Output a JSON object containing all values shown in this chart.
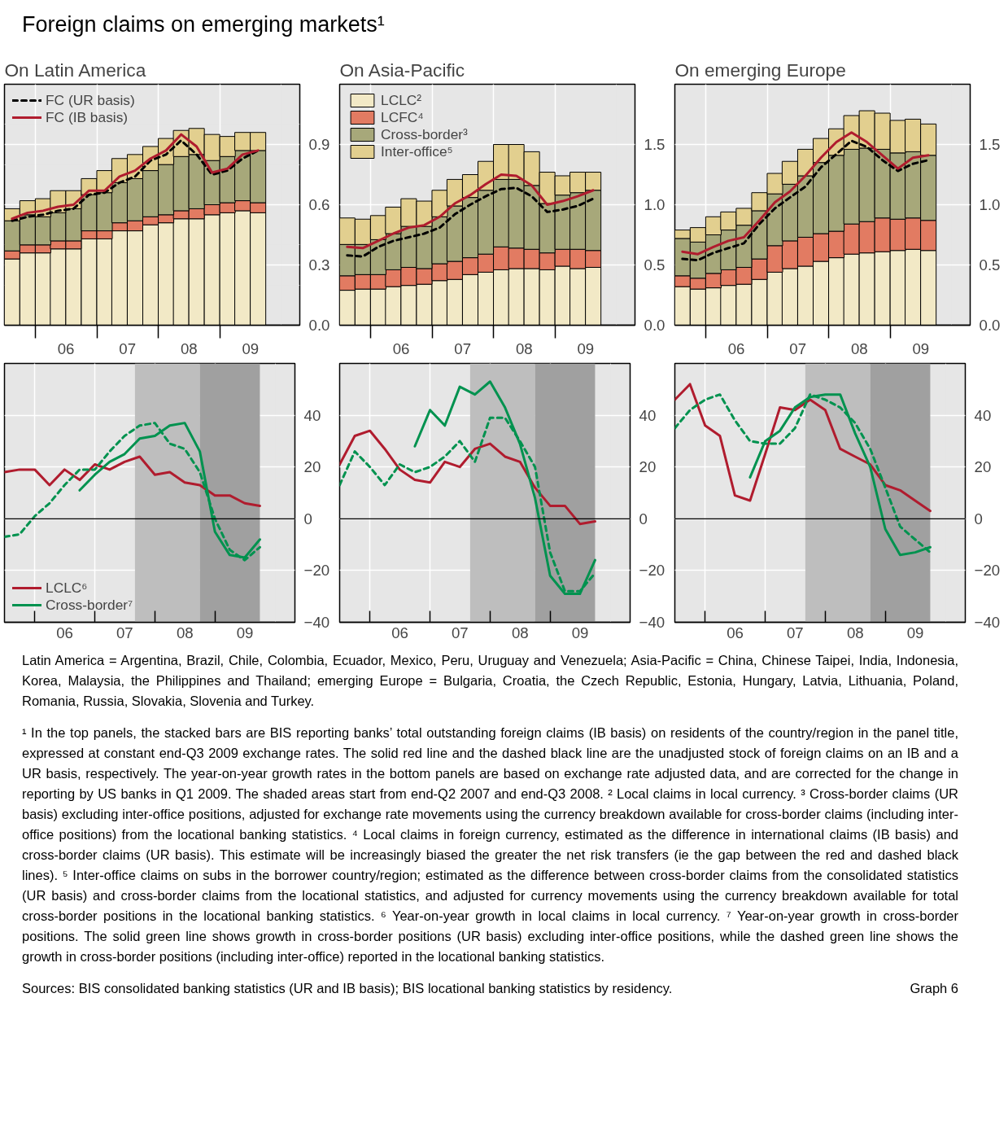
{
  "chart_data": [
    {
      "type": "bar",
      "title": "Foreign claims on emerging markets¹",
      "subtitle": "On Latin America",
      "stacked": true,
      "grid": true,
      "legend": "top left",
      "x": [
        "2005-08-15",
        "2005-11-15",
        "2006-02-15",
        "2006-05-15",
        "2006-08-15",
        "2006-11-15",
        "2007-02-15",
        "2007-05-15",
        "2007-08-15",
        "2007-11-15",
        "2008-02-15",
        "2008-05-15",
        "2008-08-15",
        "2008-11-15",
        "2009-02-15",
        "2009-05-15",
        "2009-08-15"
      ],
      "xlim": [
        "2005-07-01",
        "2010-04-20"
      ],
      "ylim": [
        0,
        1.2
      ],
      "xticks": [
        {
          "value": "2006-01-01",
          "label": null
        },
        {
          "value": "2007-01-01",
          "label": null
        },
        {
          "value": "2008-01-01",
          "label": null
        },
        {
          "value": "2009-01-01",
          "label": null
        },
        {
          "value": "2006-07-01",
          "label": "06"
        },
        {
          "value": "2007-07-01",
          "label": "07"
        },
        {
          "value": "2008-07-01",
          "label": "08"
        },
        {
          "value": "2009-07-01",
          "label": "09"
        }
      ],
      "yticks": [
        {
          "value": 0,
          "label": "0.0"
        },
        0.3,
        0.6,
        0.9
      ],
      "series": [
        {
          "color": "#f2e9c6",
          "values": [
            0.33,
            0.36,
            0.36,
            0.38,
            0.38,
            0.43,
            0.43,
            0.47,
            0.47,
            0.5,
            0.51,
            0.53,
            0.53,
            0.55,
            0.56,
            0.57,
            0.56
          ]
        },
        {
          "color": "#e27b62",
          "values": [
            0.04,
            0.04,
            0.04,
            0.04,
            0.04,
            0.04,
            0.04,
            0.04,
            0.05,
            0.04,
            0.04,
            0.04,
            0.05,
            0.05,
            0.05,
            0.05,
            0.05
          ]
        },
        {
          "color": "#a7a87a",
          "values": [
            0.15,
            0.15,
            0.14,
            0.14,
            0.16,
            0.18,
            0.19,
            0.2,
            0.21,
            0.23,
            0.25,
            0.27,
            0.27,
            0.22,
            0.23,
            0.25,
            0.26
          ]
        },
        {
          "color": "#e2cf8f",
          "values": [
            0.06,
            0.07,
            0.09,
            0.11,
            0.09,
            0.08,
            0.11,
            0.12,
            0.12,
            0.12,
            0.13,
            0.13,
            0.13,
            0.13,
            0.1,
            0.09,
            0.09
          ]
        },
        {
          "type": "line",
          "name": "FC (UR basis)",
          "color": "#000000",
          "line_style": "dashed",
          "values": [
            0.52,
            0.54,
            0.55,
            0.57,
            0.58,
            0.65,
            0.66,
            0.71,
            0.74,
            0.82,
            0.85,
            0.92,
            0.85,
            0.75,
            0.77,
            0.83,
            0.87
          ]
        },
        {
          "type": "line",
          "name": "FC (IB basis)",
          "color": "#b01c2e",
          "line_style": "solid",
          "values": [
            0.53,
            0.56,
            0.57,
            0.59,
            0.6,
            0.67,
            0.67,
            0.74,
            0.77,
            0.83,
            0.87,
            0.95,
            0.89,
            0.76,
            0.78,
            0.85,
            0.87
          ]
        }
      ]
    },
    {
      "type": "bar",
      "subtitle": "On Asia-Pacific",
      "stacked": true,
      "grid": true,
      "legend": "top left",
      "x": [
        "2005-08-15",
        "2005-11-15",
        "2006-02-15",
        "2006-05-15",
        "2006-08-15",
        "2006-11-15",
        "2007-02-15",
        "2007-05-15",
        "2007-08-15",
        "2007-11-15",
        "2008-02-15",
        "2008-05-15",
        "2008-08-15",
        "2008-11-15",
        "2009-02-15",
        "2009-05-15",
        "2009-08-15"
      ],
      "xlim": [
        "2005-07-01",
        "2010-04-20"
      ],
      "ylim": [
        0,
        2.0
      ],
      "xticks": [
        {
          "value": "2006-01-01",
          "label": null
        },
        {
          "value": "2007-01-01",
          "label": null
        },
        {
          "value": "2008-01-01",
          "label": null
        },
        {
          "value": "2009-01-01",
          "label": null
        },
        {
          "value": "2006-07-01",
          "label": "06"
        },
        {
          "value": "2007-07-01",
          "label": "07"
        },
        {
          "value": "2008-07-01",
          "label": "08"
        },
        {
          "value": "2009-07-01",
          "label": "09"
        }
      ],
      "yticks": [
        {
          "value": 0,
          "label": "0.0"
        },
        0.5,
        {
          "value": 1,
          "label": "1.0"
        },
        1.5
      ],
      "series": [
        {
          "name": "LCLC²",
          "color": "#f2e9c6",
          "values": [
            0.29,
            0.3,
            0.3,
            0.32,
            0.33,
            0.34,
            0.37,
            0.38,
            0.42,
            0.44,
            0.46,
            0.47,
            0.47,
            0.46,
            0.49,
            0.47,
            0.48
          ]
        },
        {
          "name": "LCFC⁴",
          "color": "#e27b62",
          "values": [
            0.12,
            0.12,
            0.12,
            0.14,
            0.15,
            0.13,
            0.14,
            0.15,
            0.14,
            0.15,
            0.19,
            0.17,
            0.16,
            0.14,
            0.14,
            0.16,
            0.14
          ]
        },
        {
          "name": "Cross-border³",
          "color": "#a7a87a",
          "values": [
            0.26,
            0.25,
            0.29,
            0.3,
            0.34,
            0.35,
            0.39,
            0.46,
            0.5,
            0.53,
            0.56,
            0.57,
            0.53,
            0.41,
            0.45,
            0.47,
            0.5
          ]
        },
        {
          "name": "Inter-office⁵",
          "color": "#e2cf8f",
          "values": [
            0.22,
            0.21,
            0.2,
            0.22,
            0.23,
            0.21,
            0.22,
            0.22,
            0.19,
            0.24,
            0.29,
            0.29,
            0.28,
            0.26,
            0.16,
            0.17,
            0.15
          ]
        },
        {
          "type": "line",
          "color": "#000000",
          "line_style": "dashed",
          "values": [
            0.58,
            0.57,
            0.65,
            0.7,
            0.73,
            0.76,
            0.81,
            0.92,
            1.0,
            1.07,
            1.13,
            1.14,
            1.07,
            0.94,
            0.96,
            0.99,
            1.05
          ]
        },
        {
          "type": "line",
          "color": "#b01c2e",
          "line_style": "solid",
          "values": [
            0.65,
            0.64,
            0.7,
            0.76,
            0.81,
            0.83,
            0.9,
            1.01,
            1.08,
            1.17,
            1.25,
            1.24,
            1.16,
            1.0,
            1.03,
            1.07,
            1.12
          ]
        }
      ]
    },
    {
      "type": "bar",
      "subtitle": "On emerging Europe",
      "stacked": true,
      "grid": true,
      "x": [
        "2005-08-15",
        "2005-11-15",
        "2006-02-15",
        "2006-05-15",
        "2006-08-15",
        "2006-11-15",
        "2007-02-15",
        "2007-05-15",
        "2007-08-15",
        "2007-11-15",
        "2008-02-15",
        "2008-05-15",
        "2008-08-15",
        "2008-11-15",
        "2009-02-15",
        "2009-05-15",
        "2009-08-15"
      ],
      "xlim": [
        "2005-07-01",
        "2010-04-20"
      ],
      "ylim": [
        0,
        2.0
      ],
      "xticks": [
        {
          "value": "2006-01-01",
          "label": null
        },
        {
          "value": "2007-01-01",
          "label": null
        },
        {
          "value": "2008-01-01",
          "label": null
        },
        {
          "value": "2009-01-01",
          "label": null
        },
        {
          "value": "2006-07-01",
          "label": "06"
        },
        {
          "value": "2007-07-01",
          "label": "07"
        },
        {
          "value": "2008-07-01",
          "label": "08"
        },
        {
          "value": "2009-07-01",
          "label": "09"
        }
      ],
      "yticks": [
        {
          "value": 0,
          "label": "0.0"
        },
        0.5,
        {
          "value": 1,
          "label": "1.0"
        },
        1.5
      ],
      "series": [
        {
          "color": "#f2e9c6",
          "values": [
            0.32,
            0.3,
            0.31,
            0.33,
            0.34,
            0.38,
            0.44,
            0.47,
            0.49,
            0.53,
            0.56,
            0.59,
            0.6,
            0.61,
            0.62,
            0.63,
            0.62
          ]
        },
        {
          "color": "#e27b62",
          "values": [
            0.09,
            0.09,
            0.12,
            0.13,
            0.14,
            0.17,
            0.22,
            0.23,
            0.24,
            0.23,
            0.22,
            0.25,
            0.26,
            0.28,
            0.26,
            0.26,
            0.25
          ]
        },
        {
          "color": "#a7a87a",
          "values": [
            0.31,
            0.3,
            0.32,
            0.33,
            0.35,
            0.4,
            0.43,
            0.47,
            0.51,
            0.59,
            0.63,
            0.62,
            0.61,
            0.57,
            0.55,
            0.55,
            0.54
          ]
        },
        {
          "color": "#e2cf8f",
          "values": [
            0.07,
            0.12,
            0.15,
            0.15,
            0.14,
            0.15,
            0.17,
            0.19,
            0.22,
            0.2,
            0.22,
            0.28,
            0.31,
            0.3,
            0.27,
            0.27,
            0.26
          ]
        },
        {
          "type": "line",
          "color": "#000000",
          "line_style": "dashed",
          "values": [
            0.55,
            0.54,
            0.6,
            0.64,
            0.68,
            0.84,
            0.97,
            1.06,
            1.15,
            1.31,
            1.42,
            1.53,
            1.48,
            1.37,
            1.28,
            1.34,
            1.37
          ]
        },
        {
          "type": "line",
          "color": "#b01c2e",
          "line_style": "solid",
          "values": [
            0.61,
            0.59,
            0.65,
            0.7,
            0.73,
            0.87,
            1.02,
            1.11,
            1.24,
            1.39,
            1.52,
            1.6,
            1.52,
            1.41,
            1.3,
            1.39,
            1.41
          ]
        }
      ]
    },
    {
      "type": "line",
      "grid": true,
      "legend": "bottom left",
      "x": [
        "2005-06-30",
        "2005-09-30",
        "2005-12-31",
        "2006-03-31",
        "2006-06-30",
        "2006-09-30",
        "2006-12-31",
        "2007-03-31",
        "2007-06-30",
        "2007-09-30",
        "2007-12-31",
        "2008-03-31",
        "2008-06-30",
        "2008-09-30",
        "2008-12-31",
        "2009-03-31",
        "2009-06-30",
        "2009-09-30"
      ],
      "xlim": [
        "2005-06-30",
        "2010-05-01"
      ],
      "ylim": [
        -40,
        60
      ],
      "xticks": [
        {
          "value": "2006-01-01",
          "label": null
        },
        {
          "value": "2007-01-01",
          "label": null
        },
        {
          "value": "2008-01-01",
          "label": null
        },
        {
          "value": "2009-01-01",
          "label": null
        },
        {
          "value": "2006-07-01",
          "label": "06"
        },
        {
          "value": "2007-07-01",
          "label": "07"
        },
        {
          "value": "2008-07-01",
          "label": "08"
        },
        {
          "value": "2009-07-01",
          "label": "09"
        }
      ],
      "yticks": [
        {
          "value": -40,
          "label": "−40"
        },
        {
          "value": -20,
          "label": "−20"
        },
        0,
        20,
        40
      ],
      "bands": [
        {
          "axis": "x",
          "from": "2007-09-01",
          "to": "2008-09-30",
          "color": "#bebebe"
        },
        {
          "axis": "x",
          "from": "2008-09-30",
          "to": "2009-09-30",
          "color": "#a0a0a0"
        }
      ],
      "ref_lines": [
        {
          "axis": "y",
          "value": 0,
          "color": "#000000"
        }
      ],
      "series": [
        {
          "name": "LCLC⁶",
          "color": "#b01c2e",
          "line_style": "solid",
          "values": [
            18,
            19,
            19,
            13,
            19,
            15,
            21,
            19,
            22,
            24,
            17,
            18,
            14,
            13,
            9,
            9,
            6,
            5
          ]
        },
        {
          "name": "Cross-border⁷",
          "color": "#00924f",
          "line_style": "solid",
          "values": [
            null,
            null,
            null,
            null,
            null,
            11,
            17,
            22,
            25,
            31,
            32,
            36,
            37,
            26,
            -5,
            -14,
            -15,
            -8
          ]
        },
        {
          "color": "#00924f",
          "line_style": "dashed",
          "values": [
            -7,
            -6,
            1,
            6,
            13,
            19,
            19,
            26,
            32,
            36,
            37,
            29,
            27,
            18,
            0,
            -12,
            -16,
            -11
          ]
        }
      ]
    },
    {
      "type": "line",
      "grid": true,
      "x": [
        "2005-06-30",
        "2005-09-30",
        "2005-12-31",
        "2006-03-31",
        "2006-06-30",
        "2006-09-30",
        "2006-12-31",
        "2007-03-31",
        "2007-06-30",
        "2007-09-30",
        "2007-12-31",
        "2008-03-31",
        "2008-06-30",
        "2008-09-30",
        "2008-12-31",
        "2009-03-31",
        "2009-06-30",
        "2009-09-30"
      ],
      "xlim": [
        "2005-06-30",
        "2010-05-01"
      ],
      "ylim": [
        -40,
        60
      ],
      "xticks": [
        {
          "value": "2006-01-01",
          "label": null
        },
        {
          "value": "2007-01-01",
          "label": null
        },
        {
          "value": "2008-01-01",
          "label": null
        },
        {
          "value": "2009-01-01",
          "label": null
        },
        {
          "value": "2006-07-01",
          "label": "06"
        },
        {
          "value": "2007-07-01",
          "label": "07"
        },
        {
          "value": "2008-07-01",
          "label": "08"
        },
        {
          "value": "2009-07-01",
          "label": "09"
        }
      ],
      "yticks": [
        {
          "value": -40,
          "label": "−40"
        },
        {
          "value": -20,
          "label": "−20"
        },
        0,
        20,
        40
      ],
      "bands": [
        {
          "axis": "x",
          "from": "2007-09-01",
          "to": "2008-09-30",
          "color": "#bebebe"
        },
        {
          "axis": "x",
          "from": "2008-09-30",
          "to": "2009-09-30",
          "color": "#a0a0a0"
        }
      ],
      "ref_lines": [
        {
          "axis": "y",
          "value": 0,
          "color": "#000000"
        }
      ],
      "series": [
        {
          "color": "#b01c2e",
          "line_style": "solid",
          "values": [
            21,
            32,
            34,
            27,
            19,
            15,
            14,
            22,
            20,
            27,
            29,
            24,
            22,
            12,
            5,
            5,
            -2,
            -1
          ]
        },
        {
          "color": "#00924f",
          "line_style": "solid",
          "values": [
            null,
            null,
            null,
            null,
            null,
            28,
            42,
            36,
            51,
            48,
            53,
            43,
            29,
            8,
            -22,
            -29,
            -29,
            -16
          ]
        },
        {
          "color": "#00924f",
          "line_style": "dashed",
          "values": [
            13,
            26,
            20,
            13,
            21,
            18,
            20,
            24,
            30,
            22,
            39,
            39,
            30,
            20,
            -13,
            -28,
            -28,
            -21
          ]
        }
      ]
    },
    {
      "type": "line",
      "grid": true,
      "x": [
        "2005-06-30",
        "2005-09-30",
        "2005-12-31",
        "2006-03-31",
        "2006-06-30",
        "2006-09-30",
        "2006-12-31",
        "2007-03-31",
        "2007-06-30",
        "2007-09-30",
        "2007-12-31",
        "2008-03-31",
        "2008-06-30",
        "2008-09-30",
        "2008-12-31",
        "2009-03-31",
        "2009-06-30",
        "2009-09-30"
      ],
      "xlim": [
        "2005-06-30",
        "2010-05-01"
      ],
      "ylim": [
        -40,
        60
      ],
      "xticks": [
        {
          "value": "2006-01-01",
          "label": null
        },
        {
          "value": "2007-01-01",
          "label": null
        },
        {
          "value": "2008-01-01",
          "label": null
        },
        {
          "value": "2009-01-01",
          "label": null
        },
        {
          "value": "2006-07-01",
          "label": "06"
        },
        {
          "value": "2007-07-01",
          "label": "07"
        },
        {
          "value": "2008-07-01",
          "label": "08"
        },
        {
          "value": "2009-07-01",
          "label": "09"
        }
      ],
      "yticks": [
        {
          "value": -40,
          "label": "−40"
        },
        {
          "value": -20,
          "label": "−20"
        },
        0,
        20,
        40
      ],
      "bands": [
        {
          "axis": "x",
          "from": "2007-09-01",
          "to": "2008-09-30",
          "color": "#bebebe"
        },
        {
          "axis": "x",
          "from": "2008-09-30",
          "to": "2009-09-30",
          "color": "#a0a0a0"
        }
      ],
      "ref_lines": [
        {
          "axis": "y",
          "value": 0,
          "color": "#000000"
        }
      ],
      "series": [
        {
          "color": "#b01c2e",
          "line_style": "solid",
          "values": [
            46,
            52,
            36,
            32,
            9,
            7,
            25,
            43,
            42,
            46,
            42,
            27,
            24,
            21,
            13,
            11,
            7,
            3
          ]
        },
        {
          "color": "#00924f",
          "line_style": "solid",
          "values": [
            null,
            null,
            null,
            null,
            null,
            16,
            30,
            34,
            43,
            47,
            48,
            48,
            33,
            20,
            -4,
            -14,
            -13,
            -11
          ]
        },
        {
          "color": "#00924f",
          "line_style": "dashed",
          "values": [
            35,
            42,
            46,
            48,
            38,
            30,
            29,
            29,
            35,
            48,
            46,
            43,
            37,
            27,
            12,
            -3,
            -8,
            -13
          ]
        }
      ],
      "annotations": [
        "Latin America = Argentina, Brazil, Chile, Colombia, Ecuador, Mexico, Peru, Uruguay and Venezuela; Asia-Pacific = China, Chinese Taipei, India, Indonesia, Korea, Malaysia, the Philippines and Thailand; emerging Europe = Bulgaria, Croatia, the Czech Republic, Estonia, Hungary, Latvia, Lithuania, Poland, Romania, Russia, Slovakia, Slovenia and Turkey.",
        "¹ In the top panels, the stacked bars are BIS reporting banks’ total outstanding foreign claims (IB basis) on residents of the country/region in the panel title, expressed at constant end-Q3 2009 exchange rates. The solid red line and the dashed black line are the unadjusted stock of foreign claims on an IB and a UR basis, respectively. The year-on-year growth rates in the bottom panels are based on exchange rate adjusted data, and are corrected for the change in reporting by US banks in Q1 2009. The shaded areas start from end-Q2 2007 and end-Q3 2008.   ² Local claims in local currency.   ³ Cross-border claims (UR basis) excluding inter-office positions, adjusted for exchange rate movements using the currency breakdown available for cross-border claims (including inter-office positions) from the locational banking statistics.   ⁴ Local claims in foreign currency, estimated as the difference in international claims (IB basis) and cross-border claims (UR basis). This estimate will be increasingly biased the greater the net risk transfers (ie the gap between the red and dashed black lines).   ⁵ Inter-office claims on subs in the borrower country/region; estimated as the difference between cross-border claims from the consolidated statistics (UR basis) and cross-border claims from the locational statistics, and adjusted for currency movements using the currency breakdown available for total cross-border positions in the locational banking statistics.   ⁶ Year-on-year growth in local claims in local currency.   ⁷ Year-on-year growth in cross-border positions. The solid green line shows growth in cross-border positions (UR basis) excluding inter-office positions, while the dashed green line shows the growth in cross-border positions (including inter-office) reported in the locational banking statistics.",
        "Sources: BIS consolidated banking statistics (UR and IB basis); BIS locational banking statistics by residency.",
        "Graph 6"
      ]
    }
  ]
}
